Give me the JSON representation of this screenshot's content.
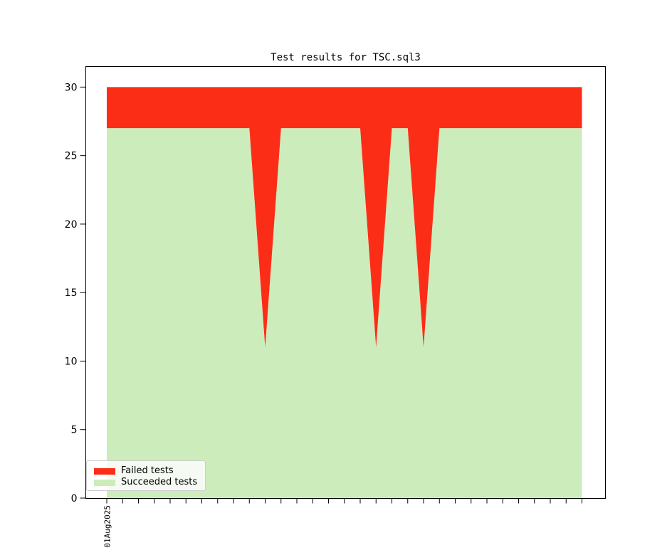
{
  "figure": {
    "title": "Test results for TSC.sql3"
  },
  "colors": {
    "failed": "#fc2d17",
    "succeeded": "#cdecbc",
    "axis": "#000000",
    "background": "#ffffff",
    "legend_border": "#cccccc",
    "legend_background": "#ffffff",
    "legend_background_opacity": 0.8
  },
  "legend": {
    "position": "lower left",
    "items": [
      {
        "label": "Failed tests",
        "color": "#fc2d17"
      },
      {
        "label": "Succeeded tests",
        "color": "#cdecbc"
      }
    ]
  },
  "chart_data": {
    "type": "area",
    "stacked": true,
    "title": "Test results for TSC.sql3",
    "xlabel": "",
    "ylabel": "",
    "grid": false,
    "legend_position": "lower left",
    "ylim": [
      0,
      31.5
    ],
    "yticks": [
      0,
      5,
      10,
      15,
      20,
      25,
      30
    ],
    "x": [
      0,
      1,
      2,
      3,
      4,
      5,
      6,
      7,
      8,
      9,
      10,
      11,
      12,
      13,
      14,
      15,
      16,
      17,
      18,
      19,
      20,
      21,
      22,
      23,
      24,
      25,
      26,
      27,
      28,
      29,
      30
    ],
    "x_tick_labels": [
      "01Aug2025",
      "",
      "",
      "",
      "",
      "",
      "",
      "",
      "",
      "",
      "",
      "",
      "",
      "",
      "",
      "",
      "",
      "",
      "",
      "",
      "",
      "",
      "",
      "",
      "",
      "",
      "",
      "",
      "",
      "",
      ""
    ],
    "total_per_point": 30,
    "series": [
      {
        "name": "Succeeded tests",
        "color": "#cdecbc",
        "values": [
          27,
          27,
          27,
          27,
          27,
          27,
          27,
          27,
          27,
          27,
          11,
          27,
          27,
          27,
          27,
          27,
          27,
          11,
          27,
          27,
          11,
          27,
          27,
          27,
          27,
          27,
          27,
          27,
          27,
          27,
          27
        ]
      },
      {
        "name": "Failed tests",
        "color": "#fc2d17",
        "values": [
          3,
          3,
          3,
          3,
          3,
          3,
          3,
          3,
          3,
          3,
          19,
          3,
          3,
          3,
          3,
          3,
          3,
          19,
          3,
          3,
          19,
          3,
          3,
          3,
          3,
          3,
          3,
          3,
          3,
          3,
          3
        ]
      }
    ]
  }
}
